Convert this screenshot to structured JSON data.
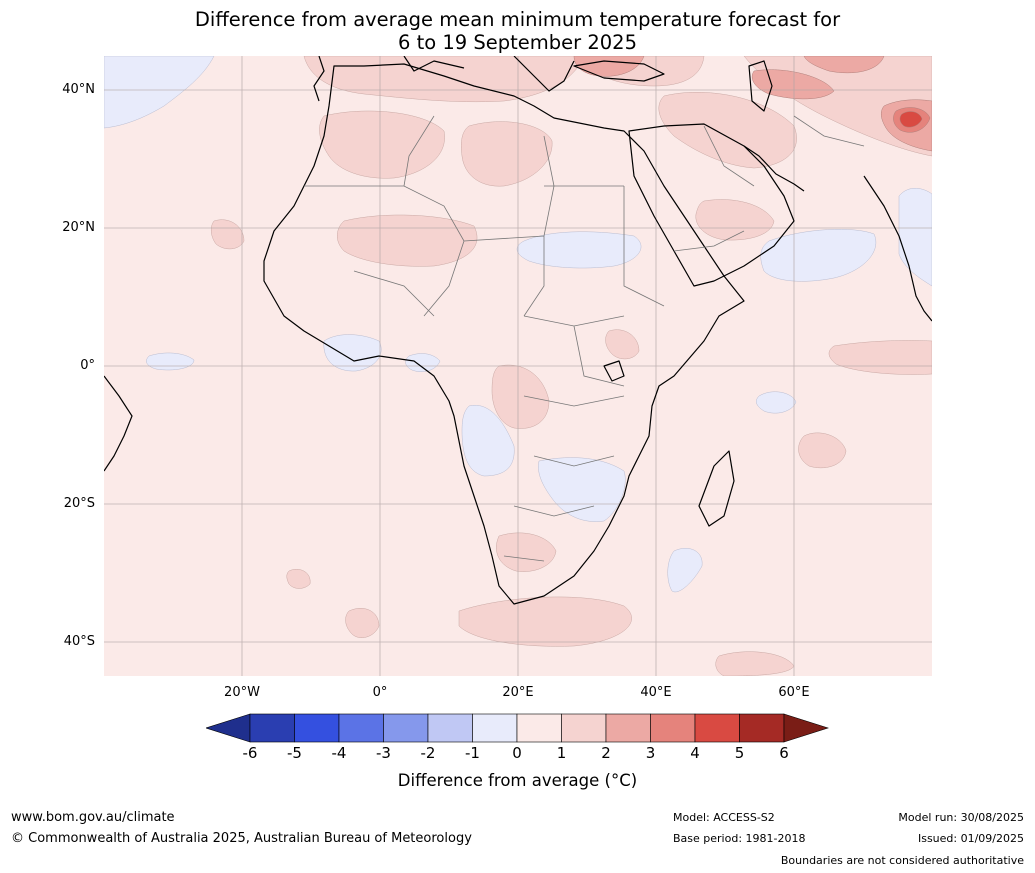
{
  "title": {
    "line1": "Difference from average mean minimum temperature forecast for",
    "line2": "6 to 19 September 2025"
  },
  "map": {
    "lat_labels": [
      "40°N",
      "20°N",
      "0°",
      "20°S",
      "40°S"
    ],
    "lon_labels": [
      "20°W",
      "0°",
      "20°E",
      "40°E",
      "60°E"
    ],
    "ocean_color": "#fbeae8",
    "anomaly_colors": {
      "neg_1_0": "#e8ebfb",
      "pos_1_2": "#f5d3d0",
      "pos_2_3": "#eca9a4",
      "pos_3_4": "#e5837c",
      "pos_4_5": "#d94a42"
    }
  },
  "colorbar": {
    "tick_labels": [
      "-6",
      "-5",
      "-4",
      "-3",
      "-2",
      "-1",
      "0",
      "1",
      "2",
      "3",
      "4",
      "5",
      "6"
    ],
    "colors": [
      "#1f2f8d",
      "#2a3eb1",
      "#3450e0",
      "#5b73e6",
      "#8598ec",
      "#c0c8f4",
      "#e8ebfb",
      "#fbeae8",
      "#f5d3d0",
      "#eca9a4",
      "#e5837c",
      "#d94a42",
      "#a52a25",
      "#7a1d16"
    ],
    "label": "Difference from average (°C)"
  },
  "footer": {
    "website": "www.bom.gov.au/climate",
    "copyright": "© Commonwealth of Australia 2025, Australian Bureau of Meteorology",
    "model": "Model: ACCESS-S2",
    "base_period": "Base period: 1981-2018",
    "model_run": "Model run: 30/08/2025",
    "issued": "Issued: 01/09/2025",
    "disclaimer": "Boundaries are not considered authoritative"
  }
}
